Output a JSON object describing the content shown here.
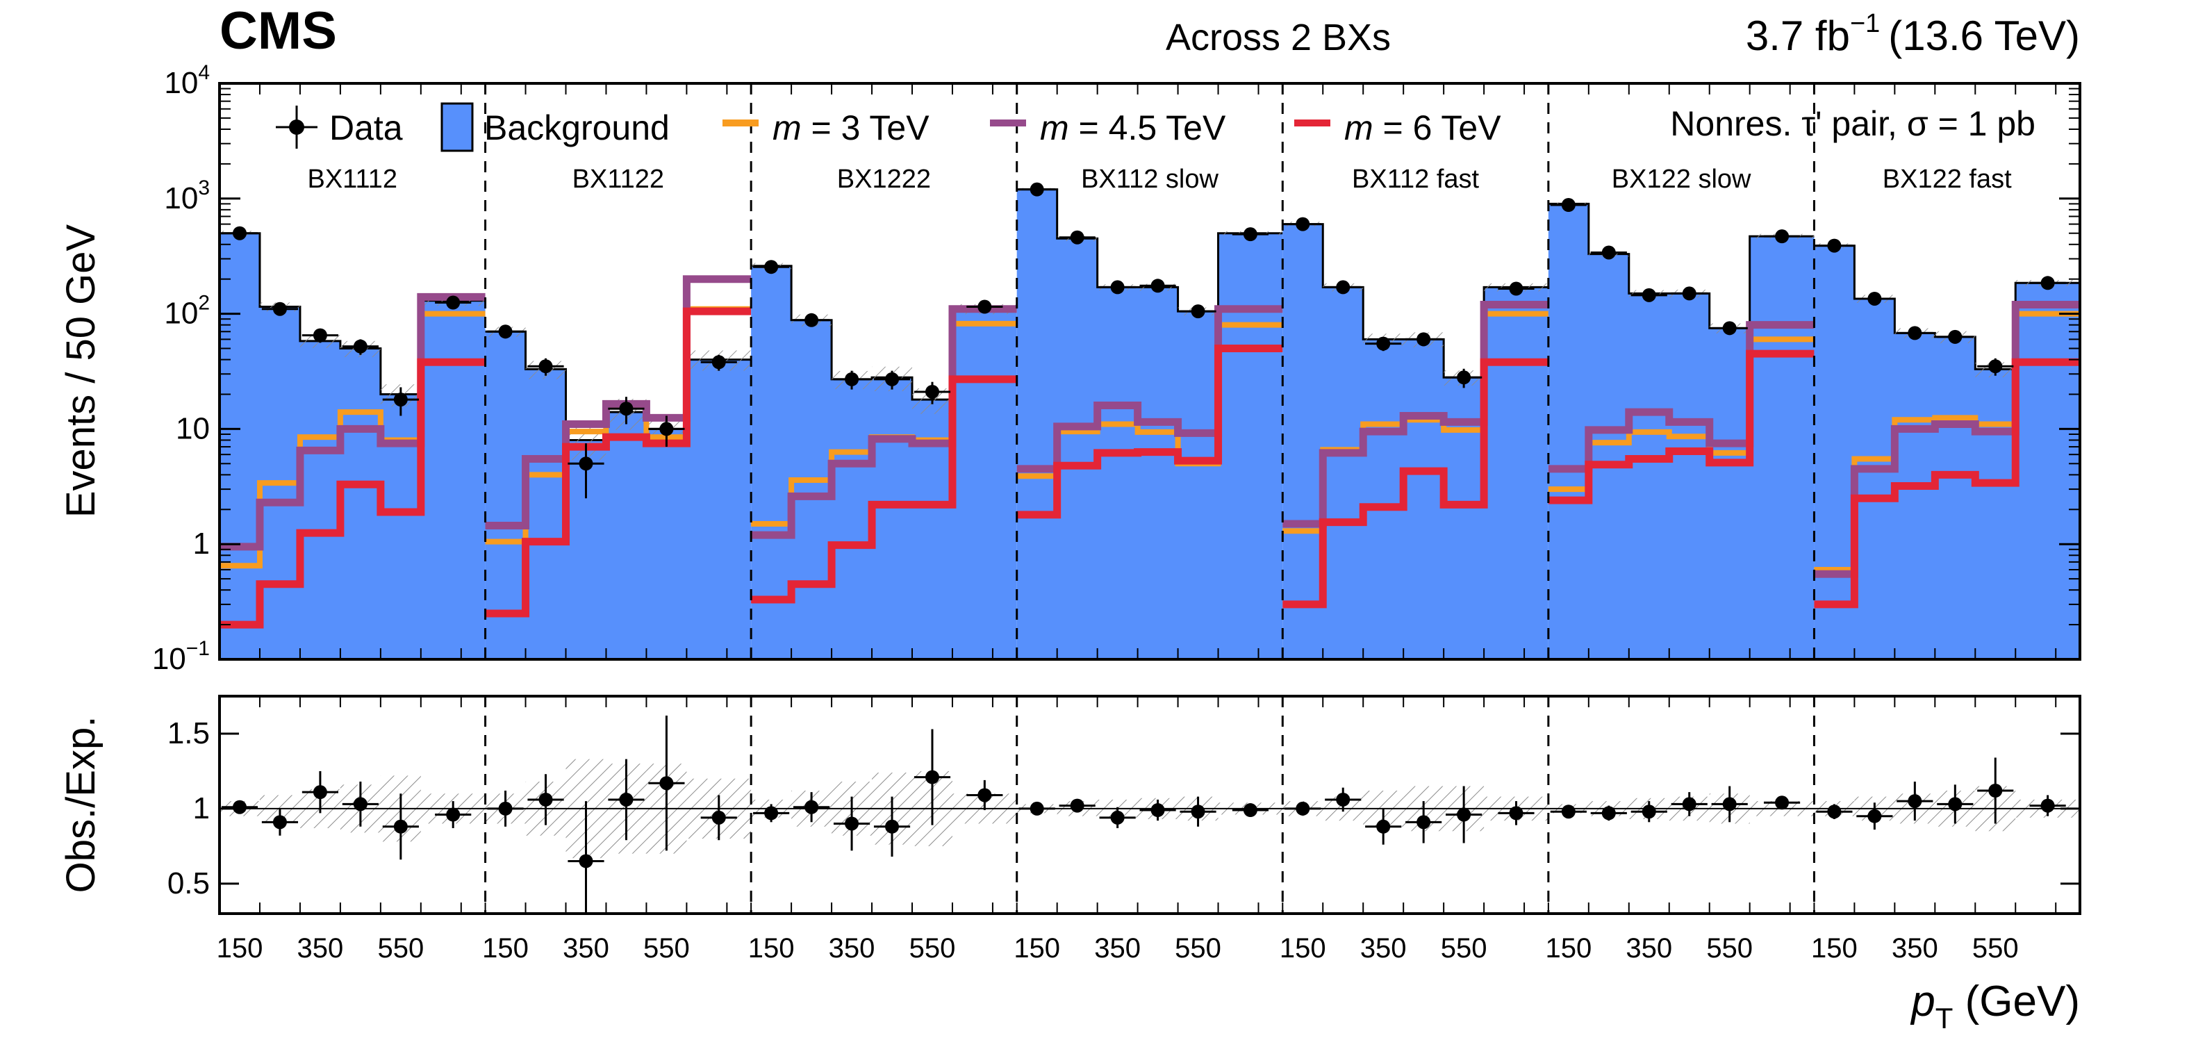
{
  "header": {
    "experiment": "CMS",
    "subtitle": "Across 2 BXs",
    "lumi_value": "3.7 fb",
    "lumi_exp": "−1",
    "energy": "(13.6 TeV)"
  },
  "annotation": "Nonres. τ' pair, σ = 1 pb",
  "colors": {
    "background_fill": "#5790fc",
    "m3": "#f89c20",
    "m45": "#964a8b",
    "m6": "#e42536",
    "data": "#000000",
    "hatch": "#888888"
  },
  "chart_data": [
    {
      "type": "bar",
      "title": "Across 2 BXs",
      "xlabel_main": "p",
      "xlabel_sub": "T",
      "xlabel_unit": " (GeV)",
      "ylabel": "Events / 50 GeV",
      "yscale": "log",
      "ylim": [
        0.1,
        10000
      ],
      "y_ticks": [
        {
          "value": 10000,
          "base": "10",
          "exp": "4"
        },
        {
          "value": 1000,
          "base": "10",
          "exp": "3"
        },
        {
          "value": 100,
          "base": "10",
          "exp": "2"
        },
        {
          "value": 10,
          "base": "10",
          "exp": ""
        },
        {
          "value": 1,
          "base": "1",
          "exp": ""
        },
        {
          "value": 0.1,
          "base": "10",
          "exp": "−1"
        }
      ],
      "regions": [
        {
          "label": "BX1112",
          "background": [
            500,
            115,
            58,
            50,
            20,
            130
          ],
          "m3": [
            0.65,
            3.4,
            8.5,
            14,
            8,
            100
          ],
          "m45": [
            0.95,
            2.3,
            6.5,
            10,
            7.5,
            140
          ],
          "m6": [
            0.2,
            0.45,
            1.25,
            3.3,
            1.9,
            38
          ],
          "data": [
            500,
            110,
            65,
            52,
            18,
            125
          ],
          "data_err": [
            25,
            12,
            9,
            8,
            5,
            12
          ]
        },
        {
          "label": "BX1122",
          "background": [
            70,
            33,
            8,
            14,
            10,
            40
          ],
          "m3": [
            1.05,
            4,
            9.5,
            16,
            8.5,
            110
          ],
          "m45": [
            1.45,
            5.5,
            11,
            16.5,
            12.5,
            200
          ],
          "m6": [
            0.25,
            1.05,
            7,
            8.5,
            7.5,
            105
          ],
          "data": [
            70,
            35,
            5,
            15,
            10,
            38
          ],
          "data_err": [
            9,
            6,
            2.5,
            4,
            3,
            6
          ]
        },
        {
          "label": "BX1222",
          "background": [
            260,
            88,
            27,
            28,
            18,
            110
          ],
          "m3": [
            1.5,
            3.6,
            6.3,
            8.5,
            8,
            82
          ],
          "m45": [
            1.2,
            2.6,
            5,
            8.2,
            7.5,
            110
          ],
          "m6": [
            0.33,
            0.45,
            0.98,
            2.2,
            2.2,
            27
          ],
          "data": [
            255,
            88,
            27,
            27,
            21,
            115
          ],
          "data_err": [
            16,
            9,
            5,
            5,
            4.6,
            11
          ]
        },
        {
          "label": "BX112 slow",
          "background": [
            1200,
            450,
            170,
            170,
            105,
            500
          ],
          "m3": [
            3.9,
            9.5,
            11,
            9.4,
            5,
            80
          ],
          "m45": [
            4.5,
            10.5,
            16,
            11.5,
            9.2,
            110
          ],
          "m6": [
            1.8,
            4.8,
            6.2,
            6.3,
            5.3,
            50
          ],
          "data": [
            1200,
            460,
            170,
            175,
            105,
            490
          ],
          "data_err": [
            35,
            21,
            13,
            13,
            10,
            22
          ]
        },
        {
          "label": "BX112 fast",
          "background": [
            600,
            170,
            60,
            60,
            28,
            170
          ],
          "m3": [
            1.3,
            6.6,
            11,
            12,
            9.8,
            100
          ],
          "m45": [
            1.5,
            6.2,
            9.5,
            13,
            11.5,
            120
          ],
          "m6": [
            0.3,
            1.55,
            2.1,
            4.3,
            2.2,
            38
          ],
          "data": [
            600,
            170,
            55,
            60,
            28,
            165
          ],
          "data_err": [
            24,
            13,
            7.5,
            7.7,
            5.3,
            13
          ]
        },
        {
          "label": "BX122 slow",
          "background": [
            900,
            330,
            150,
            150,
            75,
            470
          ],
          "m3": [
            3,
            7.6,
            9.4,
            8.6,
            6.2,
            60
          ],
          "m45": [
            4.5,
            9.8,
            14,
            11.5,
            7.5,
            80
          ],
          "m6": [
            2.4,
            4.9,
            5.5,
            6.4,
            5.1,
            45
          ],
          "data": [
            880,
            340,
            145,
            150,
            75,
            470
          ],
          "data_err": [
            30,
            18,
            12,
            12,
            9,
            22
          ]
        },
        {
          "label": "BX122 fast",
          "background": [
            390,
            135,
            68,
            63,
            33,
            185
          ],
          "m3": [
            0.6,
            5.5,
            12,
            12.5,
            11,
            100
          ],
          "m45": [
            0.55,
            4.5,
            10,
            11,
            9.5,
            120
          ],
          "m6": [
            0.3,
            2.5,
            3.2,
            4,
            3.4,
            38
          ],
          "data": [
            390,
            135,
            68,
            63,
            35,
            185
          ],
          "data_err": [
            20,
            12,
            8,
            8,
            6,
            14
          ]
        }
      ]
    },
    {
      "type": "scatter",
      "ylabel": "Obs./Exp.",
      "ylim": [
        0.3,
        1.75
      ],
      "y_ticks": [
        "0.5",
        "1",
        "1.5"
      ],
      "x_tick_labels": [
        "150",
        "350",
        "550"
      ],
      "regions": [
        {
          "ratio": [
            1.01,
            0.91,
            1.11,
            1.03,
            0.88,
            0.96
          ],
          "err": [
            0.04,
            0.09,
            0.14,
            0.15,
            0.22,
            0.09
          ],
          "band": [
            0.05,
            0.09,
            0.13,
            0.16,
            0.22,
            0.1
          ]
        },
        {
          "ratio": [
            1.0,
            1.06,
            0.65,
            1.06,
            1.17,
            0.94
          ],
          "err": [
            0.12,
            0.17,
            0.4,
            0.27,
            0.45,
            0.15
          ],
          "band": [
            0.1,
            0.18,
            0.33,
            0.3,
            0.3,
            0.2
          ]
        },
        {
          "ratio": [
            0.97,
            1.01,
            0.9,
            0.88,
            1.21,
            1.09
          ],
          "err": [
            0.06,
            0.1,
            0.18,
            0.2,
            0.32,
            0.1
          ],
          "band": [
            0.06,
            0.12,
            0.18,
            0.24,
            0.25,
            0.1
          ]
        },
        {
          "ratio": [
            1.0,
            1.02,
            0.94,
            0.99,
            0.98,
            0.99
          ],
          "err": [
            0.03,
            0.04,
            0.07,
            0.07,
            0.1,
            0.04
          ],
          "band": [
            0.03,
            0.05,
            0.06,
            0.07,
            0.08,
            0.04
          ]
        },
        {
          "ratio": [
            1.0,
            1.06,
            0.88,
            0.91,
            0.96,
            0.97
          ],
          "err": [
            0.04,
            0.08,
            0.12,
            0.14,
            0.19,
            0.08
          ],
          "band": [
            0.05,
            0.08,
            0.12,
            0.15,
            0.15,
            0.08
          ]
        },
        {
          "ratio": [
            0.98,
            0.97,
            0.98,
            1.03,
            1.03,
            1.04
          ],
          "err": [
            0.03,
            0.05,
            0.07,
            0.08,
            0.12,
            0.04
          ],
          "band": [
            0.03,
            0.05,
            0.07,
            0.08,
            0.1,
            0.05
          ]
        },
        {
          "ratio": [
            0.98,
            0.95,
            1.05,
            1.03,
            1.12,
            1.02
          ],
          "err": [
            0.05,
            0.09,
            0.13,
            0.13,
            0.22,
            0.07
          ],
          "band": [
            0.05,
            0.08,
            0.1,
            0.12,
            0.15,
            0.06
          ]
        }
      ]
    }
  ],
  "legend": {
    "data": "Data",
    "background": "Background",
    "m3_prefix": "m",
    "m3_suffix": " = 3 TeV",
    "m45_prefix": "m",
    "m45_suffix": " = 4.5 TeV",
    "m6_prefix": "m",
    "m6_suffix": " = 6 TeV"
  }
}
